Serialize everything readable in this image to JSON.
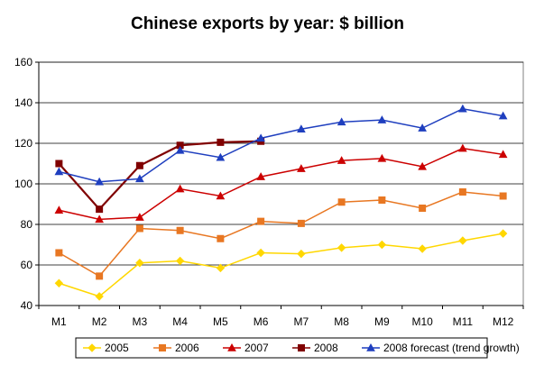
{
  "chart_data": {
    "type": "line",
    "title": "Chinese exports by year: $ billion",
    "categories": [
      "M1",
      "M2",
      "M3",
      "M4",
      "M5",
      "M6",
      "M7",
      "M8",
      "M9",
      "M10",
      "M11",
      "M12"
    ],
    "ylim": [
      40,
      160
    ],
    "yticks": [
      40,
      60,
      80,
      100,
      120,
      140,
      160
    ],
    "grid": true,
    "legend_position": "bottom",
    "series": [
      {
        "name": "2005",
        "color": "#FFD700",
        "marker": "diamond",
        "values": [
          51,
          44.5,
          61,
          62,
          58.5,
          66,
          65.5,
          68.5,
          70,
          68,
          72,
          75.5
        ]
      },
      {
        "name": "2006",
        "color": "#E87722",
        "marker": "square",
        "values": [
          66,
          54.5,
          78,
          77,
          73,
          81.5,
          80.5,
          91,
          92,
          88,
          96,
          94
        ]
      },
      {
        "name": "2007",
        "color": "#CC0000",
        "marker": "triangle",
        "values": [
          87,
          82.5,
          83.5,
          97.5,
          94,
          103.5,
          107.5,
          111.5,
          112.5,
          108.5,
          117.5,
          114.5
        ]
      },
      {
        "name": "2008",
        "color": "#800000",
        "marker": "square",
        "values": [
          110,
          87.5,
          109,
          119,
          120.5,
          121,
          null,
          null,
          null,
          null,
          null,
          null
        ]
      },
      {
        "name": "2008 forecast (trend growth)",
        "color": "#1F3FBF",
        "marker": "triangle",
        "values": [
          106,
          101,
          102.5,
          116.5,
          113,
          122.5,
          127,
          130.5,
          131.5,
          127.5,
          137,
          133.5
        ]
      }
    ]
  }
}
